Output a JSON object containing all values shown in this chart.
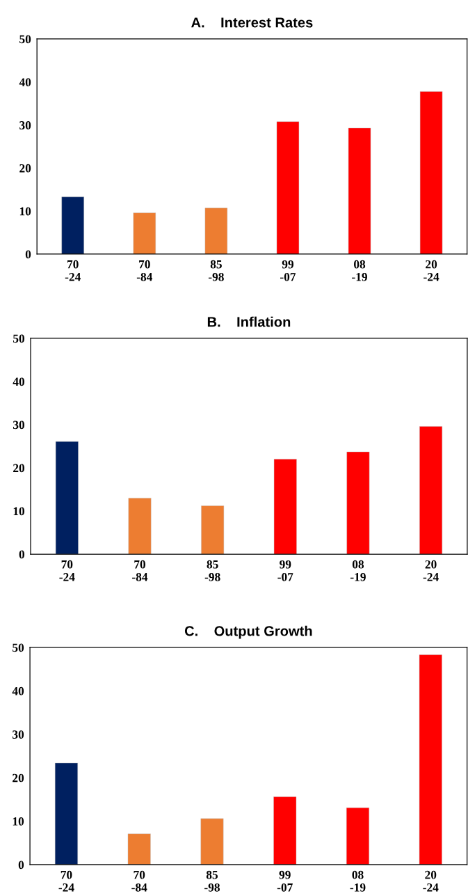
{
  "chart_data": [
    {
      "type": "bar",
      "title": "A.    Interest Rates",
      "categories": [
        "70\n-24",
        "70\n-84",
        "85\n-98",
        "99\n-07",
        "08\n-19",
        "20\n-24"
      ],
      "values": [
        13.3,
        9.6,
        10.7,
        30.8,
        29.3,
        37.8
      ],
      "colors": [
        "#002060",
        "#ed7d31",
        "#ed7d31",
        "#ff0000",
        "#ff0000",
        "#ff0000"
      ],
      "ylim": [
        0,
        50
      ],
      "yticks": [
        0,
        10,
        20,
        30,
        40,
        50
      ],
      "grid": false
    },
    {
      "type": "bar",
      "title": "B.    Inflation",
      "categories": [
        "70\n-24",
        "70\n-84",
        "85\n-98",
        "99\n-07",
        "08\n-19",
        "20\n-24"
      ],
      "values": [
        26.1,
        13.0,
        11.2,
        22.0,
        23.7,
        29.6
      ],
      "colors": [
        "#002060",
        "#ed7d31",
        "#ed7d31",
        "#ff0000",
        "#ff0000",
        "#ff0000"
      ],
      "ylim": [
        0,
        50
      ],
      "yticks": [
        0,
        10,
        20,
        30,
        40,
        50
      ],
      "grid": false
    },
    {
      "type": "bar",
      "title": "C.    Output Growth",
      "categories": [
        "70\n-24",
        "70\n-84",
        "85\n-98",
        "99\n-07",
        "08\n-19",
        "20\n-24"
      ],
      "values": [
        23.4,
        7.1,
        10.6,
        15.6,
        13.1,
        48.3
      ],
      "colors": [
        "#002060",
        "#ed7d31",
        "#ed7d31",
        "#ff0000",
        "#ff0000",
        "#ff0000"
      ],
      "ylim": [
        0,
        50
      ],
      "yticks": [
        0,
        10,
        20,
        30,
        40,
        50
      ],
      "grid": false
    }
  ]
}
